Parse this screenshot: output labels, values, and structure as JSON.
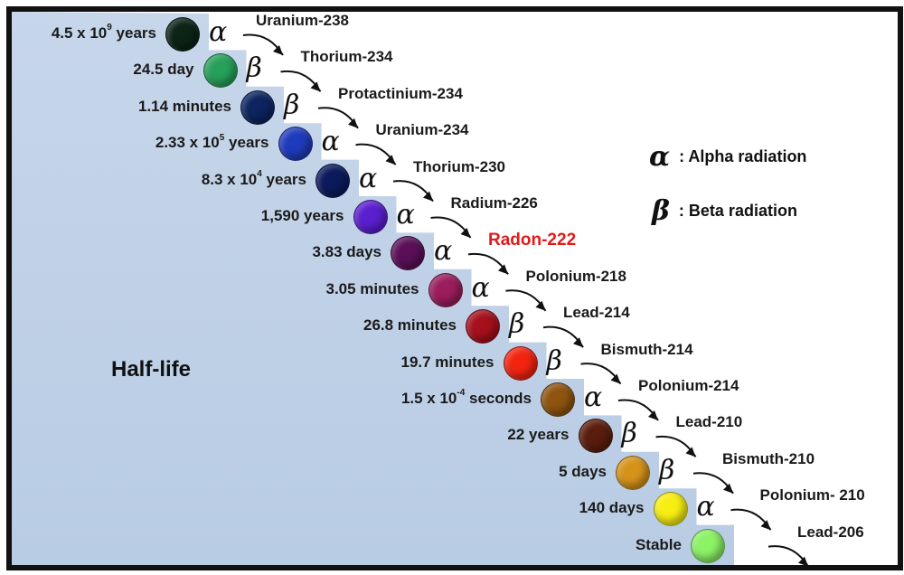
{
  "title": "Half-life",
  "legend": [
    {
      "symbol": "α",
      "label": ": Alpha radiation"
    },
    {
      "symbol": "β",
      "label": ": Beta radiation"
    }
  ],
  "chain": [
    {
      "halflife": "4.5 x 10",
      "exp": "9",
      "unit": " years",
      "symbol": "α",
      "nuclide": "Uranium-238",
      "color": "#0b2416"
    },
    {
      "halflife": "24.5 day",
      "exp": "",
      "unit": "",
      "symbol": "β",
      "nuclide": "Thorium-234",
      "color": "#27a05a"
    },
    {
      "halflife": "1.14 minutes",
      "exp": "",
      "unit": "",
      "symbol": "β",
      "nuclide": "Protactinium-234",
      "color": "#0d2460"
    },
    {
      "halflife": "2.33 x 10",
      "exp": "5",
      "unit": " years",
      "symbol": "α",
      "nuclide": "Uranium-234",
      "color": "#1f3bbd"
    },
    {
      "halflife": "8.3 x 10",
      "exp": "4",
      "unit": " years",
      "symbol": "α",
      "nuclide": "Thorium-230",
      "color": "#0b1a5c"
    },
    {
      "halflife": "1,590 years",
      "exp": "",
      "unit": "",
      "symbol": "α",
      "nuclide": "Radium-226",
      "color": "#5a1fcf"
    },
    {
      "halflife": "3.83 days",
      "exp": "",
      "unit": "",
      "symbol": "α",
      "nuclide": "Radon-222",
      "color": "#5a0f57"
    },
    {
      "halflife": "3.05 minutes",
      "exp": "",
      "unit": "",
      "symbol": "α",
      "nuclide": "Polonium-218",
      "color": "#9a1d5c"
    },
    {
      "halflife": "26.8 minutes",
      "exp": "",
      "unit": "",
      "symbol": "β",
      "nuclide": "Lead-214",
      "color": "#a5101c"
    },
    {
      "halflife": "19.7 minutes",
      "exp": "",
      "unit": "",
      "symbol": "β",
      "nuclide": "Bismuth-214",
      "color": "#f22411"
    },
    {
      "halflife": "1.5 x 10",
      "exp": "-4",
      "unit": " seconds",
      "symbol": "α",
      "nuclide": "Polonium-214",
      "color": "#8e5410"
    },
    {
      "halflife": "22 years",
      "exp": "",
      "unit": "",
      "symbol": "β",
      "nuclide": "Lead-210",
      "color": "#5b1d0d"
    },
    {
      "halflife": "5 days",
      "exp": "",
      "unit": "",
      "symbol": "β",
      "nuclide": "Bismuth-210",
      "color": "#d6931a"
    },
    {
      "halflife": "140 days",
      "exp": "",
      "unit": "",
      "symbol": "α",
      "nuclide": "Polonium- 210",
      "color": "#f7ee12"
    },
    {
      "halflife": "Stable",
      "exp": "",
      "unit": "",
      "symbol": "",
      "nuclide": "Lead-206",
      "color": "#8cf266"
    }
  ]
}
